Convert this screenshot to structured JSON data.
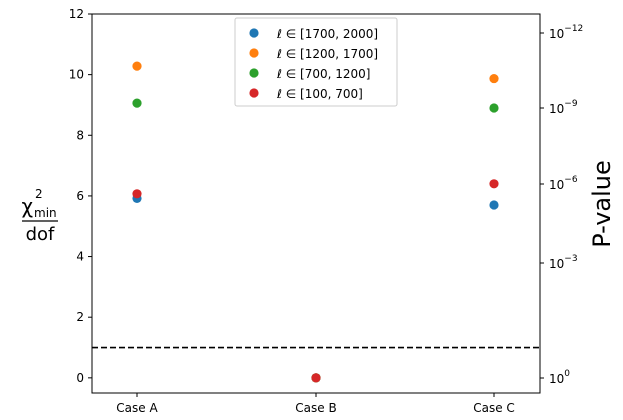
{
  "chart_data": {
    "type": "scatter",
    "categories": [
      "Case A",
      "Case B",
      "Case C"
    ],
    "ylim": [
      -0.5,
      12
    ],
    "yticks": [
      0,
      2,
      4,
      6,
      8,
      10,
      12
    ],
    "ylabel": {
      "symbol": "χ",
      "superscript": "2",
      "subscript": "min",
      "denominator": "dof"
    },
    "y2label": "P-value",
    "y2ticks": [
      {
        "base": "10",
        "exp": "−12",
        "y": -3.4
      },
      {
        "base": "10",
        "exp": "−9",
        "y": 9.1
      },
      {
        "base": "10",
        "exp": "−6",
        "y": 6.4
      },
      {
        "base": "10",
        "exp": "−3",
        "y": 3.8
      },
      {
        "base": "10",
        "exp": "0",
        "y": 0.0
      }
    ],
    "reference_line": {
      "y": 1.0,
      "style": "dashed",
      "color": "#000000"
    },
    "series": [
      {
        "name": "ℓ ∈ [1700, 2000]",
        "color": "#1f77b4",
        "values": [
          5.92,
          0.0,
          5.7
        ]
      },
      {
        "name": "ℓ ∈ [1200, 1700]",
        "color": "#ff7f0e",
        "values": [
          10.28,
          0.0,
          9.87
        ]
      },
      {
        "name": "ℓ ∈ [700, 1200]",
        "color": "#2ca02c",
        "values": [
          9.06,
          0.0,
          8.9
        ]
      },
      {
        "name": "ℓ ∈ [100, 700]",
        "color": "#d62728",
        "values": [
          6.07,
          0.0,
          6.4
        ]
      }
    ],
    "legend_position": "upper-center"
  }
}
